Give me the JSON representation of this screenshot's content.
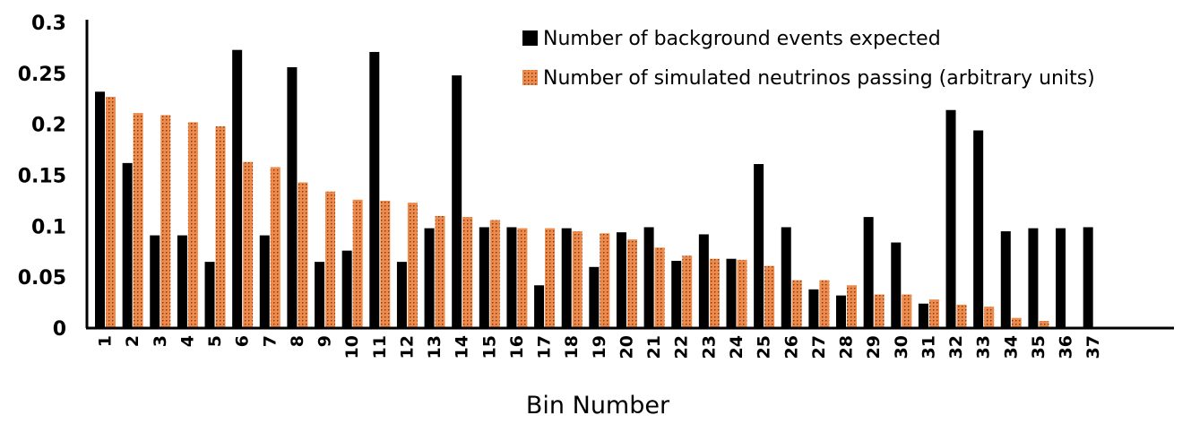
{
  "chart_data": {
    "type": "bar",
    "title": "",
    "xlabel": "Bin Number",
    "ylabel": "",
    "ylim": [
      0,
      0.3
    ],
    "y_ticks": [
      "0",
      "0.05",
      "0.1",
      "0.15",
      "0.2",
      "0.25",
      "0.3"
    ],
    "categories": [
      "1",
      "2",
      "3",
      "4",
      "5",
      "6",
      "7",
      "8",
      "9",
      "10",
      "11",
      "12",
      "13",
      "14",
      "15",
      "16",
      "17",
      "18",
      "19",
      "20",
      "21",
      "22",
      "23",
      "24",
      "25",
      "26",
      "27",
      "28",
      "29",
      "30",
      "31",
      "32",
      "33",
      "34",
      "35",
      "36",
      "37"
    ],
    "series": [
      {
        "name": "Number of background events expected",
        "color": "#000000",
        "values": [
          0.232,
          0.162,
          0.091,
          0.091,
          0.065,
          0.273,
          0.091,
          0.256,
          0.065,
          0.076,
          0.271,
          0.065,
          0.098,
          0.248,
          0.099,
          0.099,
          0.042,
          0.098,
          0.06,
          0.094,
          0.099,
          0.066,
          0.092,
          0.068,
          0.161,
          0.099,
          0.038,
          0.032,
          0.109,
          0.084,
          0.024,
          0.214,
          0.194,
          0.095,
          0.098,
          0.098,
          0.099
        ]
      },
      {
        "name": "Number of simulated neutrinos passing (arbitrary units)",
        "color": "#f08a4b",
        "values": [
          0.227,
          0.211,
          0.209,
          0.202,
          0.198,
          0.163,
          0.158,
          0.143,
          0.134,
          0.126,
          0.125,
          0.123,
          0.11,
          0.109,
          0.106,
          0.098,
          0.098,
          0.095,
          0.093,
          0.087,
          0.079,
          0.071,
          0.068,
          0.067,
          0.061,
          0.047,
          0.047,
          0.042,
          0.033,
          0.033,
          0.028,
          0.023,
          0.021,
          0.01,
          0.007,
          0,
          0
        ]
      }
    ],
    "grid": false,
    "legend_position": "top-right"
  }
}
